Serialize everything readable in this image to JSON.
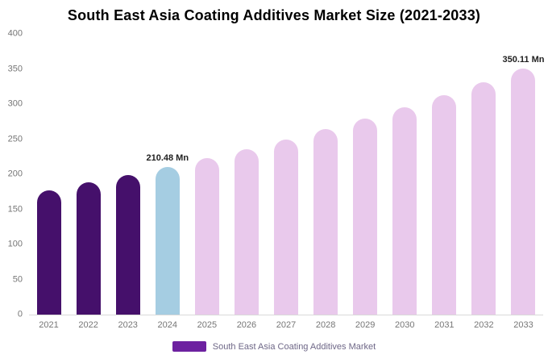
{
  "title": "South East Asia Coating Additives Market Size (2021-2033)",
  "chart_data": {
    "type": "bar",
    "title": "South East Asia Coating Additives Market Size (2021-2033)",
    "categories": [
      "2021",
      "2022",
      "2023",
      "2024",
      "2025",
      "2026",
      "2027",
      "2028",
      "2029",
      "2030",
      "2031",
      "2032",
      "2033"
    ],
    "values": [
      177.6,
      188.0,
      198.9,
      210.48,
      222.7,
      235.7,
      249.4,
      263.9,
      279.3,
      295.5,
      312.7,
      330.9,
      350.11
    ],
    "unit": "Mn",
    "xlabel": "",
    "ylabel": "",
    "ylim": [
      0,
      400
    ],
    "yticks": [
      0,
      50,
      100,
      150,
      200,
      250,
      300,
      350,
      400
    ],
    "grid": false,
    "bar_colors": [
      "#45106b",
      "#45106b",
      "#45106b",
      "#a5cde2",
      "#e9c9ec",
      "#e9c9ec",
      "#e9c9ec",
      "#e9c9ec",
      "#e9c9ec",
      "#e9c9ec",
      "#e9c9ec",
      "#e9c9ec",
      "#e9c9ec"
    ],
    "annotations": [
      {
        "category": "2024",
        "text": "210.48 Mn",
        "value": 210.48
      },
      {
        "category": "2033",
        "text": "350.11 Mn",
        "value": 350.11
      }
    ],
    "legend": {
      "label": "South East Asia Coating Additives Market",
      "color": "#6d21a0",
      "position": "bottom"
    }
  }
}
